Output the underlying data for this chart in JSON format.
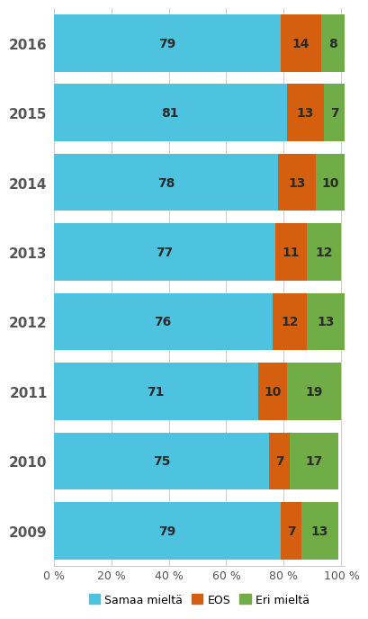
{
  "years": [
    "2009",
    "2010",
    "2011",
    "2012",
    "2013",
    "2014",
    "2015",
    "2016"
  ],
  "samaa_mielta": [
    79,
    75,
    71,
    76,
    77,
    78,
    81,
    79
  ],
  "eos": [
    7,
    7,
    10,
    12,
    11,
    13,
    13,
    14
  ],
  "eri_mielta": [
    13,
    17,
    19,
    13,
    12,
    10,
    7,
    8
  ],
  "color_samaa": "#4DC3E0",
  "color_eos": "#D45F0E",
  "color_eri": "#70AD47",
  "legend_samaa": "Samaa mieltä",
  "legend_eos": "EOS",
  "legend_eri": "Eri mieltä",
  "background_color": "#FFFFFF",
  "bar_height": 0.82,
  "xlim": [
    0,
    101
  ],
  "xticks": [
    0,
    20,
    40,
    60,
    80,
    100
  ],
  "xtick_labels": [
    "0 %",
    "20 %",
    "40 %",
    "60 %",
    "80 %",
    "100 %"
  ]
}
